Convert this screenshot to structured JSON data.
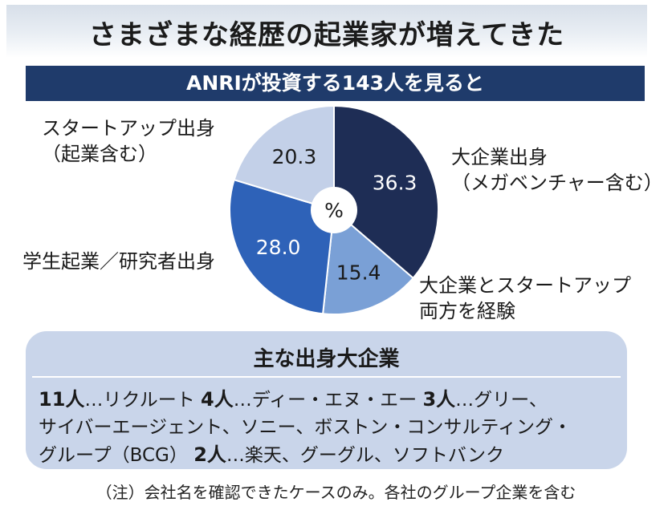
{
  "chart_data": {
    "type": "pie",
    "title": "さまざまな経歴の起業家が増えてきた",
    "subtitle": "ANRIが投資する143人を見ると",
    "center_label": "%",
    "slices": [
      {
        "label_lines": [
          "大企業出身",
          "（メガベンチャー含む）"
        ],
        "value": 36.3,
        "value_text": "36.3",
        "color": "#1e2d55",
        "text_color": "#ffffff"
      },
      {
        "label_lines": [
          "大企業とスタートアップ",
          "両方を経験"
        ],
        "value": 15.4,
        "value_text": "15.4",
        "color": "#7aa0d6",
        "text_color": "#1a1a1a"
      },
      {
        "label_lines": [
          "学生起業／研究者出身"
        ],
        "value": 28.0,
        "value_text": "28.0",
        "color": "#2e62b8",
        "text_color": "#ffffff"
      },
      {
        "label_lines": [
          "スタートアップ出身",
          "（起業含む）"
        ],
        "value": 20.3,
        "value_text": "20.3",
        "color": "#c3d0e8",
        "text_color": "#1a1a1a"
      }
    ]
  },
  "companies": {
    "title": "主な出身大企業",
    "lines": [
      [
        {
          "t": "11人",
          "b": true
        },
        {
          "t": "…リクルート ",
          "b": false
        },
        {
          "t": "4人",
          "b": true
        },
        {
          "t": "…ディー・エヌ・エー ",
          "b": false
        },
        {
          "t": "3人",
          "b": true
        },
        {
          "t": "…グリー、",
          "b": false
        }
      ],
      [
        {
          "t": "サイバーエージェント、ソニー、ボストン・コンサルティング・",
          "b": false
        }
      ],
      [
        {
          "t": "グループ（BCG） ",
          "b": false
        },
        {
          "t": "2人",
          "b": true
        },
        {
          "t": "…楽天、グーグル、ソフトバンク",
          "b": false
        }
      ]
    ]
  },
  "note": "（注）会社名を確認できたケースのみ。各社のグループ企業を含む"
}
